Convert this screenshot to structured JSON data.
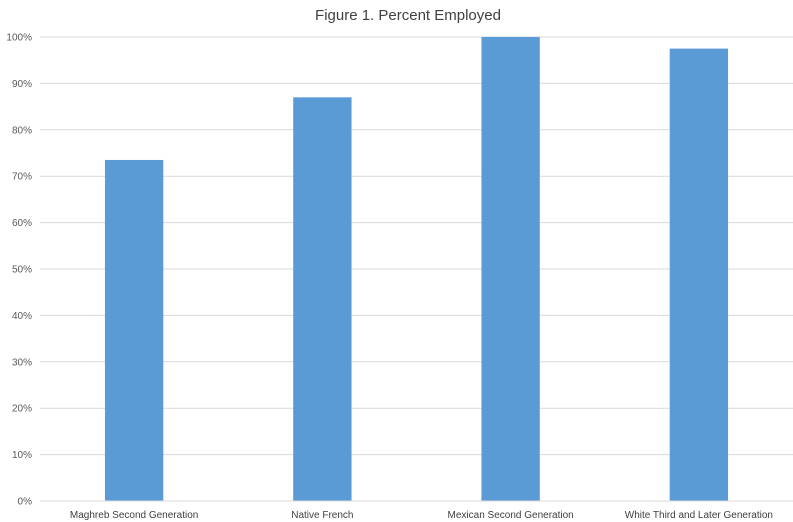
{
  "chart_data": {
    "type": "bar",
    "title": "Figure 1. Percent Employed",
    "categories": [
      "Maghreb Second Generation",
      "Native French",
      "Mexican Second Generation",
      "White Third and Later Generation"
    ],
    "values": [
      73.5,
      87.0,
      100.0,
      97.5
    ],
    "ylim": [
      0,
      100
    ],
    "yticks": [
      "0%",
      "10%",
      "20%",
      "30%",
      "40%",
      "50%",
      "60%",
      "70%",
      "80%",
      "90%",
      "100%"
    ],
    "xlabel": "",
    "ylabel": "",
    "grid": true,
    "legend": "none",
    "colors": {
      "bar": "#5B9BD5",
      "grid": "#D9D9D9"
    }
  }
}
